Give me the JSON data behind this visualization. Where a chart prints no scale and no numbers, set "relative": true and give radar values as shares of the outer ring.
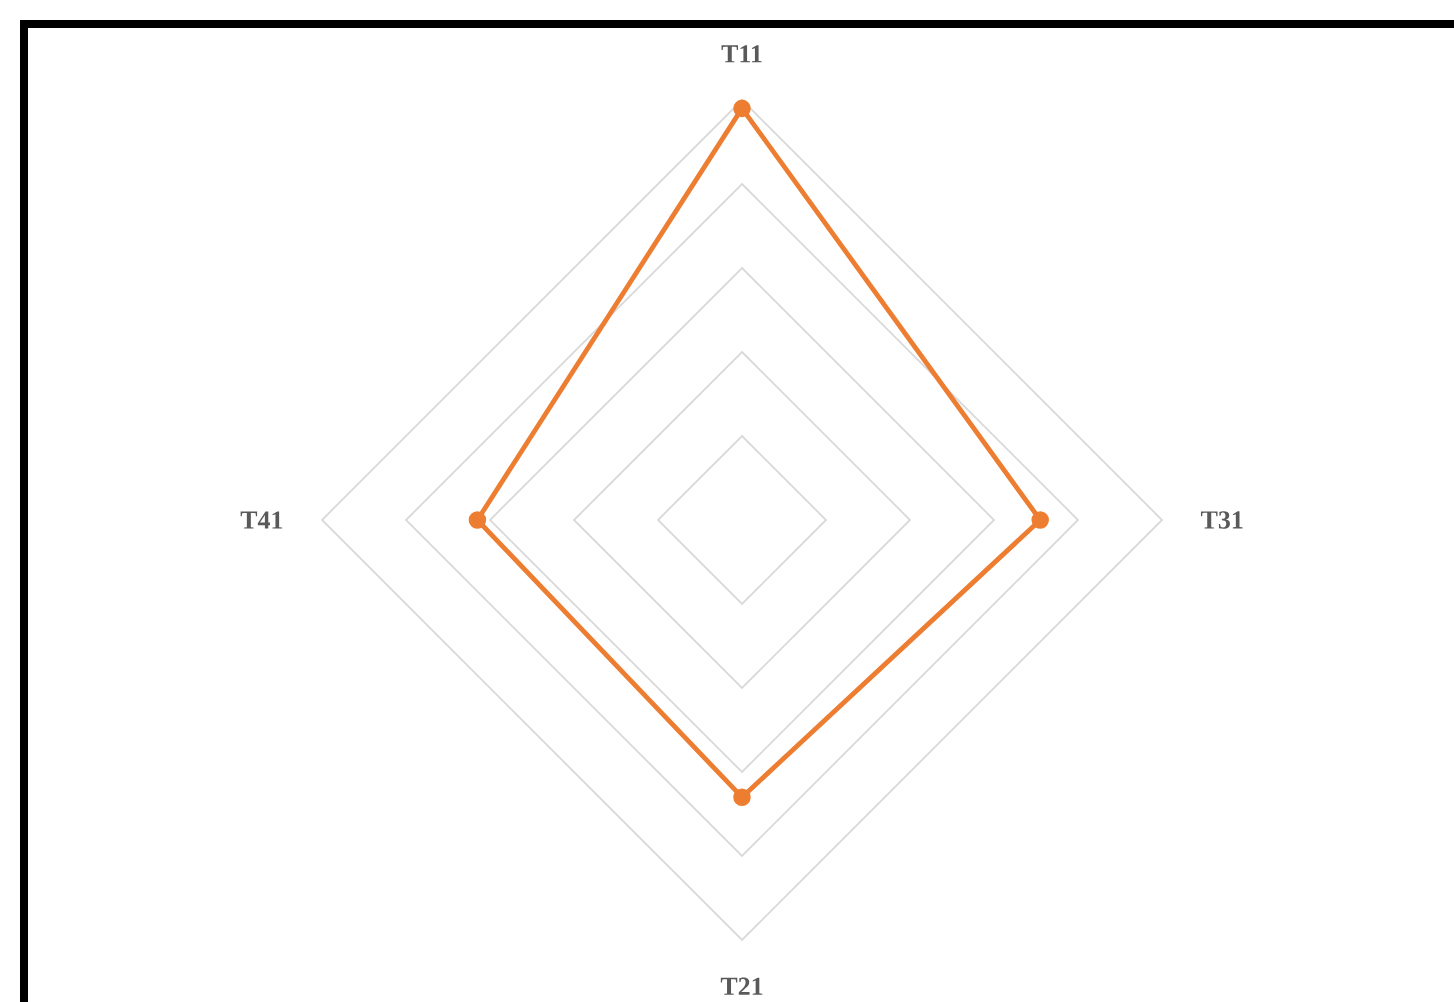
{
  "chart_data": {
    "type": "radar",
    "relative": true,
    "grid": true,
    "marker": "circle",
    "line_style": "solid",
    "categories": [
      "T11",
      "T31",
      "T21",
      "T41"
    ],
    "series": [
      {
        "color": "#ed7d31",
        "values": [
          0.98,
          0.71,
          0.66,
          0.63
        ]
      }
    ]
  }
}
